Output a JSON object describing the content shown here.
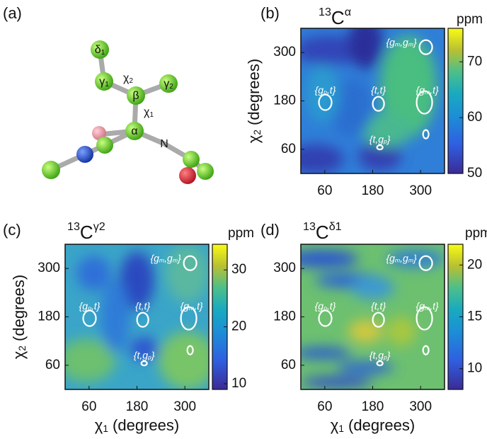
{
  "panel_a": {
    "label": "(a)",
    "atoms": [
      [
        "δ",
        "1"
      ],
      [
        "γ",
        "1"
      ],
      [
        "χ",
        "2"
      ],
      [
        "β"
      ],
      [
        "γ",
        "2"
      ],
      [
        "χ",
        "1"
      ],
      [
        "α"
      ],
      [
        "N"
      ]
    ]
  },
  "maps": [
    {
      "label": "(b)",
      "title": [
        "13",
        "C",
        "α"
      ],
      "colorbar_label": "ppm",
      "clim": [
        50,
        76
      ],
      "cticks": [
        50,
        60,
        70
      ],
      "xlim": [
        0,
        360
      ],
      "ylim": [
        0,
        360
      ],
      "xticks": [
        60,
        180,
        300
      ],
      "yticks": [
        60,
        180,
        300
      ],
      "ylabel": [
        "χ",
        "2",
        " (degrees)"
      ],
      "annotations": [
        [
          "{g",
          "m",
          ",g",
          "m",
          "}"
        ],
        [
          "{g",
          "p",
          ",t}"
        ],
        [
          "{t,t}"
        ],
        [
          "{g",
          "m",
          ",t}"
        ],
        [
          "{t,g",
          "p",
          "}"
        ]
      ]
    },
    {
      "label": "(c)",
      "title": [
        "13",
        "C",
        "γ2"
      ],
      "colorbar_label": "ppm",
      "clim": [
        9,
        34.5
      ],
      "cticks": [
        10,
        20,
        30
      ],
      "xlim": [
        0,
        360
      ],
      "ylim": [
        0,
        360
      ],
      "xticks": [
        60,
        180,
        300
      ],
      "yticks": [
        60,
        180,
        300
      ],
      "ylabel": [
        "χ",
        "2",
        " (degrees)"
      ],
      "xlabel": [
        "χ",
        "1",
        " (degrees)"
      ],
      "annotations": [
        [
          "{g",
          "m",
          ",g",
          "m",
          "}"
        ],
        [
          "{g",
          "p",
          ",t}"
        ],
        [
          "{t,t}"
        ],
        [
          "{g",
          "m",
          ",t}"
        ],
        [
          "{t,g",
          "p",
          "}"
        ]
      ]
    },
    {
      "label": "(d)",
      "title": [
        "13",
        "C",
        "δ1"
      ],
      "colorbar_label": "ppm",
      "clim": [
        8,
        22
      ],
      "cticks": [
        10,
        15,
        20
      ],
      "xlim": [
        0,
        360
      ],
      "ylim": [
        0,
        360
      ],
      "xticks": [
        60,
        180,
        300
      ],
      "yticks": [
        60,
        180,
        300
      ],
      "xlabel": [
        "χ",
        "1",
        " (degrees)"
      ],
      "annotations": [
        [
          "{g",
          "m",
          ",g",
          "m",
          "}"
        ],
        [
          "{g",
          "p",
          ",t}"
        ],
        [
          "{t,t}"
        ],
        [
          "{g",
          "m",
          ",t}"
        ],
        [
          "{t,g",
          "p",
          "}"
        ]
      ]
    }
  ]
}
